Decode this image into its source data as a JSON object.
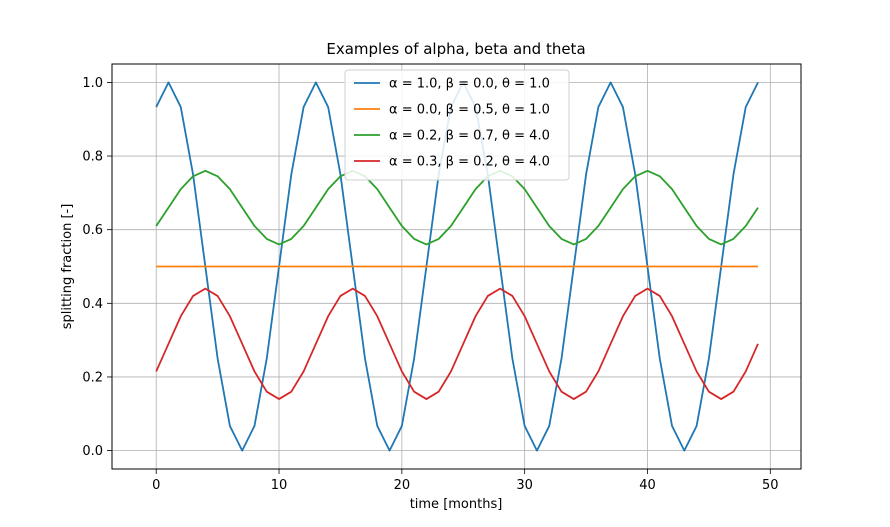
{
  "chart_data": {
    "type": "line",
    "title": "Examples of alpha, beta and theta",
    "xlabel": "time [months]",
    "ylabel": "splitting fraction [-]",
    "xlim": [
      -3.6,
      52.5
    ],
    "ylim": [
      -0.05,
      1.05
    ],
    "xticks": [
      0,
      10,
      20,
      30,
      40,
      50
    ],
    "yticks": [
      0.0,
      0.2,
      0.4,
      0.6,
      0.8,
      1.0
    ],
    "xtick_labels": [
      "0",
      "10",
      "20",
      "30",
      "40",
      "50"
    ],
    "ytick_labels": [
      "0.0",
      "0.2",
      "0.4",
      "0.6",
      "0.8",
      "1.0"
    ],
    "grid": true,
    "legend_position": "top-center",
    "x": [
      0,
      1,
      2,
      3,
      4,
      5,
      6,
      7,
      8,
      9,
      10,
      11,
      12,
      13,
      14,
      15,
      16,
      17,
      18,
      19,
      20,
      21,
      22,
      23,
      24,
      25,
      26,
      27,
      28,
      29,
      30,
      31,
      32,
      33,
      34,
      35,
      36,
      37,
      38,
      39,
      40,
      41,
      42,
      43,
      44,
      45,
      46,
      47,
      48,
      49
    ],
    "series": [
      {
        "name": "α = 1.0, β = 0.0, θ = 1.0",
        "color": "#1f77b4",
        "values": [
          0.933,
          1.0,
          0.933,
          0.75,
          0.5,
          0.25,
          0.067,
          0.0,
          0.067,
          0.25,
          0.5,
          0.75,
          0.933,
          1.0,
          0.933,
          0.75,
          0.5,
          0.25,
          0.067,
          0.0,
          0.067,
          0.25,
          0.5,
          0.75,
          0.933,
          1.0,
          0.933,
          0.75,
          0.5,
          0.25,
          0.067,
          0.0,
          0.067,
          0.25,
          0.5,
          0.75,
          0.933,
          1.0,
          0.933,
          0.75,
          0.5,
          0.25,
          0.067,
          0.0,
          0.067,
          0.25,
          0.5,
          0.75,
          0.933,
          1.0
        ]
      },
      {
        "name": "α = 0.0, β = 0.5, θ = 1.0",
        "color": "#ff7f0e",
        "values": [
          0.5,
          0.5,
          0.5,
          0.5,
          0.5,
          0.5,
          0.5,
          0.5,
          0.5,
          0.5,
          0.5,
          0.5,
          0.5,
          0.5,
          0.5,
          0.5,
          0.5,
          0.5,
          0.5,
          0.5,
          0.5,
          0.5,
          0.5,
          0.5,
          0.5,
          0.5,
          0.5,
          0.5,
          0.5,
          0.5,
          0.5,
          0.5,
          0.5,
          0.5,
          0.5,
          0.5,
          0.5,
          0.5,
          0.5,
          0.5,
          0.5,
          0.5,
          0.5,
          0.5,
          0.5,
          0.5,
          0.5,
          0.5,
          0.5,
          0.5
        ]
      },
      {
        "name": "α = 0.2, β = 0.7, θ = 4.0",
        "color": "#2ca02c",
        "values": [
          0.61,
          0.66,
          0.71,
          0.745,
          0.76,
          0.745,
          0.71,
          0.66,
          0.61,
          0.575,
          0.56,
          0.575,
          0.61,
          0.66,
          0.71,
          0.745,
          0.76,
          0.745,
          0.71,
          0.66,
          0.61,
          0.575,
          0.56,
          0.575,
          0.61,
          0.66,
          0.71,
          0.745,
          0.76,
          0.745,
          0.71,
          0.66,
          0.61,
          0.575,
          0.56,
          0.575,
          0.61,
          0.66,
          0.71,
          0.745,
          0.76,
          0.745,
          0.71,
          0.66,
          0.61,
          0.575,
          0.56,
          0.575,
          0.61,
          0.66
        ]
      },
      {
        "name": "α = 0.3, β = 0.2, θ = 4.0",
        "color": "#d62728",
        "values": [
          0.215,
          0.29,
          0.365,
          0.42,
          0.44,
          0.42,
          0.365,
          0.29,
          0.215,
          0.16,
          0.14,
          0.16,
          0.215,
          0.29,
          0.365,
          0.42,
          0.44,
          0.42,
          0.365,
          0.29,
          0.215,
          0.16,
          0.14,
          0.16,
          0.215,
          0.29,
          0.365,
          0.42,
          0.44,
          0.42,
          0.365,
          0.29,
          0.215,
          0.16,
          0.14,
          0.16,
          0.215,
          0.29,
          0.365,
          0.42,
          0.44,
          0.42,
          0.365,
          0.29,
          0.215,
          0.16,
          0.14,
          0.16,
          0.215,
          0.29
        ]
      }
    ]
  }
}
